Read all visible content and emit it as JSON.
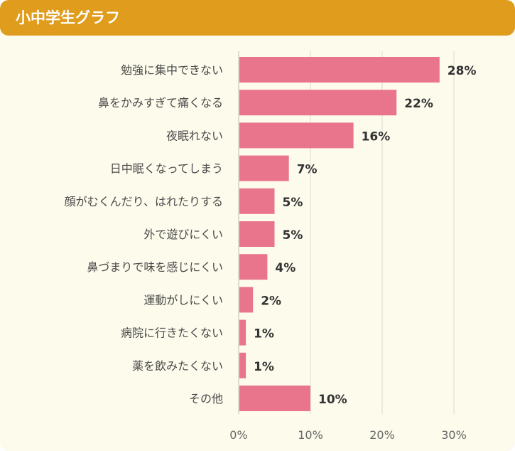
{
  "header": {
    "title": "小中学生グラフ"
  },
  "colors": {
    "header": "#e09c1c",
    "bar": "#e8758c",
    "background": "#fdfbec",
    "grid": "#d9d9d0"
  },
  "chart_data": {
    "type": "bar",
    "orientation": "horizontal",
    "title": "",
    "categories": [
      "勉強に集中できない",
      "鼻をかみすぎて痛くなる",
      "夜眠れない",
      "日中眠くなってしまう",
      "顔がむくんだり、はれたりする",
      "外で遊びにくい",
      "鼻づまりで味を感じにくい",
      "運動がしにくい",
      "病院に行きたくない",
      "薬を飲みたくない",
      "その他"
    ],
    "values": [
      28,
      22,
      16,
      7,
      5,
      5,
      4,
      2,
      1,
      1,
      10
    ],
    "value_labels": [
      "28%",
      "22%",
      "16%",
      "7%",
      "5%",
      "5%",
      "4%",
      "2%",
      "1%",
      "1%",
      "10%"
    ],
    "xlim": [
      0,
      30
    ],
    "ticks": [
      0,
      10,
      20,
      30
    ],
    "tick_labels": [
      "0%",
      "10%",
      "20%",
      "30%"
    ],
    "grid": true,
    "legend": "none"
  }
}
